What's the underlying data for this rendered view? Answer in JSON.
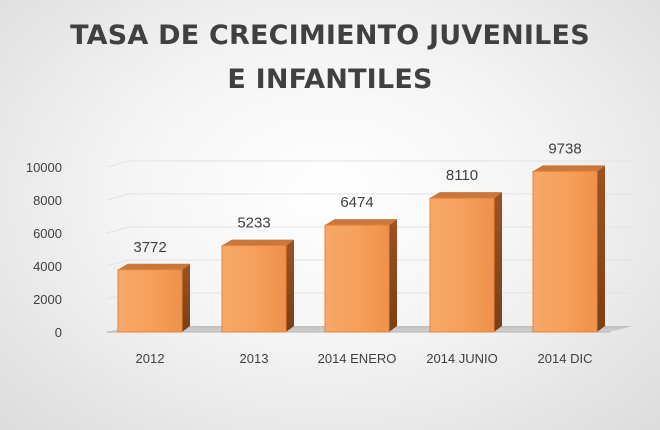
{
  "chart_data": {
    "type": "bar",
    "title": "TASA DE CRECIMIENTO JUVENILES E INFANTILES",
    "categories": [
      "2012",
      "2013",
      "2014 ENERO",
      "2014 JUNIO",
      "2014 DIC"
    ],
    "values": [
      3772,
      5233,
      6474,
      8110,
      9738
    ],
    "data_labels": [
      "3772",
      "5233",
      "6474",
      "8110",
      "9738"
    ],
    "y_ticks": [
      "0",
      "2000",
      "4000",
      "6000",
      "8000",
      "10000"
    ],
    "ylim": [
      0,
      10000
    ],
    "xlabel": "",
    "ylabel": "",
    "grid": true,
    "legend": "none"
  },
  "colors": {
    "bar_front": "#f5a05c",
    "bar_front_dark": "#e8843b",
    "bar_side": "#8a4a1c",
    "bar_top": "#c9773a",
    "floor": "#c9c9c9",
    "text": "#404040"
  }
}
